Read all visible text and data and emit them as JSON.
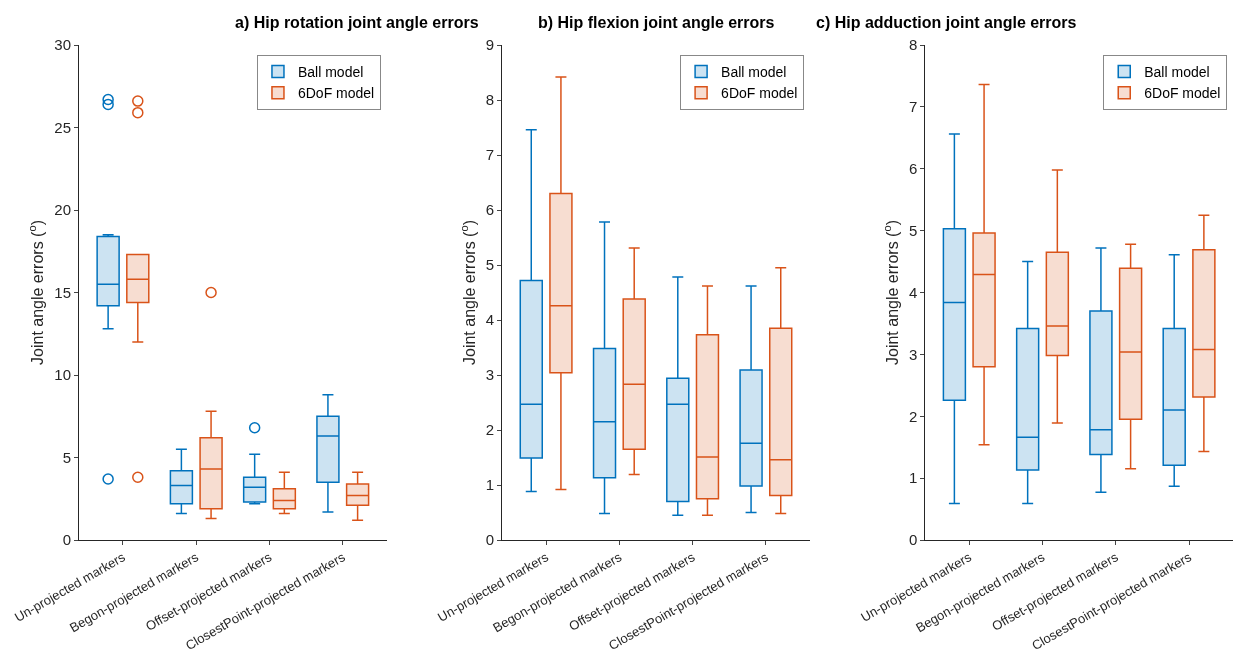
{
  "chart_data": [
    {
      "type": "box",
      "title": "a) Hip rotation joint angle errors",
      "ylabel": "Joint angle errors ($^{o}$)",
      "categories": [
        "Un-projected markers",
        "Begon-projected markers",
        "Offset-projected markers",
        "ClosestPoint-projected markers"
      ],
      "ylim": [
        0,
        30
      ],
      "yticks": [
        0,
        5,
        10,
        15,
        20,
        25,
        30
      ],
      "legend": "top right",
      "marker": "circle",
      "series": [
        {
          "name": "Ball model",
          "color": "#0072bd",
          "boxes": [
            {
              "low": 12.8,
              "q1": 14.2,
              "median": 15.5,
              "q3": 18.4,
              "high": 18.5,
              "outliers": [
                26.7,
                26.4,
                3.7
              ]
            },
            {
              "low": 1.6,
              "q1": 2.2,
              "median": 3.3,
              "q3": 4.2,
              "high": 5.5
            },
            {
              "low": 2.2,
              "q1": 2.3,
              "median": 3.2,
              "q3": 3.8,
              "high": 5.2,
              "outliers": [
                6.8
              ]
            },
            {
              "low": 1.7,
              "q1": 3.5,
              "median": 6.3,
              "q3": 7.5,
              "high": 8.8
            }
          ]
        },
        {
          "name": "6DoF model",
          "color": "#d95319",
          "boxes": [
            {
              "low": 12.0,
              "q1": 14.4,
              "median": 15.8,
              "q3": 17.3,
              "high": 17.3,
              "outliers": [
                26.6,
                25.9,
                3.8
              ]
            },
            {
              "low": 1.3,
              "q1": 1.9,
              "median": 4.3,
              "q3": 6.2,
              "high": 7.8,
              "outliers": [
                15.0
              ]
            },
            {
              "low": 1.6,
              "q1": 1.9,
              "median": 2.4,
              "q3": 3.1,
              "high": 4.1
            },
            {
              "low": 1.2,
              "q1": 2.1,
              "median": 2.7,
              "q3": 3.4,
              "high": 4.1
            }
          ]
        }
      ]
    },
    {
      "type": "box",
      "title": "b) Hip flexion joint angle errors",
      "ylabel": "Joint angle errors ($^{o}$)",
      "categories": [
        "Un-projected markers",
        "Begon-projected markers",
        "Offset-projected markers",
        "ClosestPoint-projected markers"
      ],
      "ylim": [
        0,
        9
      ],
      "yticks": [
        0,
        1,
        2,
        3,
        4,
        5,
        6,
        7,
        8,
        9
      ],
      "legend": "top right",
      "series": [
        {
          "name": "Ball model",
          "color": "#0072bd",
          "boxes": [
            {
              "low": 0.88,
              "q1": 1.49,
              "median": 2.47,
              "q3": 4.72,
              "high": 7.46
            },
            {
              "low": 0.48,
              "q1": 1.13,
              "median": 2.15,
              "q3": 3.48,
              "high": 5.78
            },
            {
              "low": 0.45,
              "q1": 0.7,
              "median": 2.47,
              "q3": 2.94,
              "high": 4.78
            },
            {
              "low": 0.5,
              "q1": 0.98,
              "median": 1.76,
              "q3": 3.09,
              "high": 4.62
            }
          ]
        },
        {
          "name": "6DoF model",
          "color": "#d95319",
          "boxes": [
            {
              "low": 0.92,
              "q1": 3.04,
              "median": 4.26,
              "q3": 6.3,
              "high": 8.42
            },
            {
              "low": 1.19,
              "q1": 1.65,
              "median": 2.83,
              "q3": 4.38,
              "high": 5.31
            },
            {
              "low": 0.45,
              "q1": 0.75,
              "median": 1.51,
              "q3": 3.73,
              "high": 4.62
            },
            {
              "low": 0.48,
              "q1": 0.81,
              "median": 1.46,
              "q3": 3.85,
              "high": 4.95
            }
          ]
        }
      ]
    },
    {
      "type": "box",
      "title": "c) Hip adduction joint angle errors",
      "ylabel": "Joint angle errors ($^{o}$)",
      "categories": [
        "Un-projected markers",
        "Begon-projected markers",
        "Offset-projected markers",
        "ClosestPoint-projected markers"
      ],
      "ylim": [
        0,
        8
      ],
      "yticks": [
        0,
        1,
        2,
        3,
        4,
        5,
        6,
        7,
        8
      ],
      "legend": "top right",
      "series": [
        {
          "name": "Ball model",
          "color": "#0072bd",
          "boxes": [
            {
              "low": 0.59,
              "q1": 2.26,
              "median": 3.84,
              "q3": 5.03,
              "high": 6.56
            },
            {
              "low": 0.59,
              "q1": 1.13,
              "median": 1.66,
              "q3": 3.42,
              "high": 4.5
            },
            {
              "low": 0.77,
              "q1": 1.38,
              "median": 1.78,
              "q3": 3.7,
              "high": 4.72
            },
            {
              "low": 0.87,
              "q1": 1.21,
              "median": 2.1,
              "q3": 3.42,
              "high": 4.61
            }
          ]
        },
        {
          "name": "6DoF model",
          "color": "#d95319",
          "boxes": [
            {
              "low": 1.54,
              "q1": 2.8,
              "median": 4.29,
              "q3": 4.96,
              "high": 7.36
            },
            {
              "low": 1.89,
              "q1": 2.98,
              "median": 3.46,
              "q3": 4.65,
              "high": 5.98
            },
            {
              "low": 1.15,
              "q1": 1.95,
              "median": 3.04,
              "q3": 4.39,
              "high": 4.78
            },
            {
              "low": 1.43,
              "q1": 2.31,
              "median": 3.08,
              "q3": 4.69,
              "high": 5.25
            }
          ]
        }
      ]
    }
  ]
}
